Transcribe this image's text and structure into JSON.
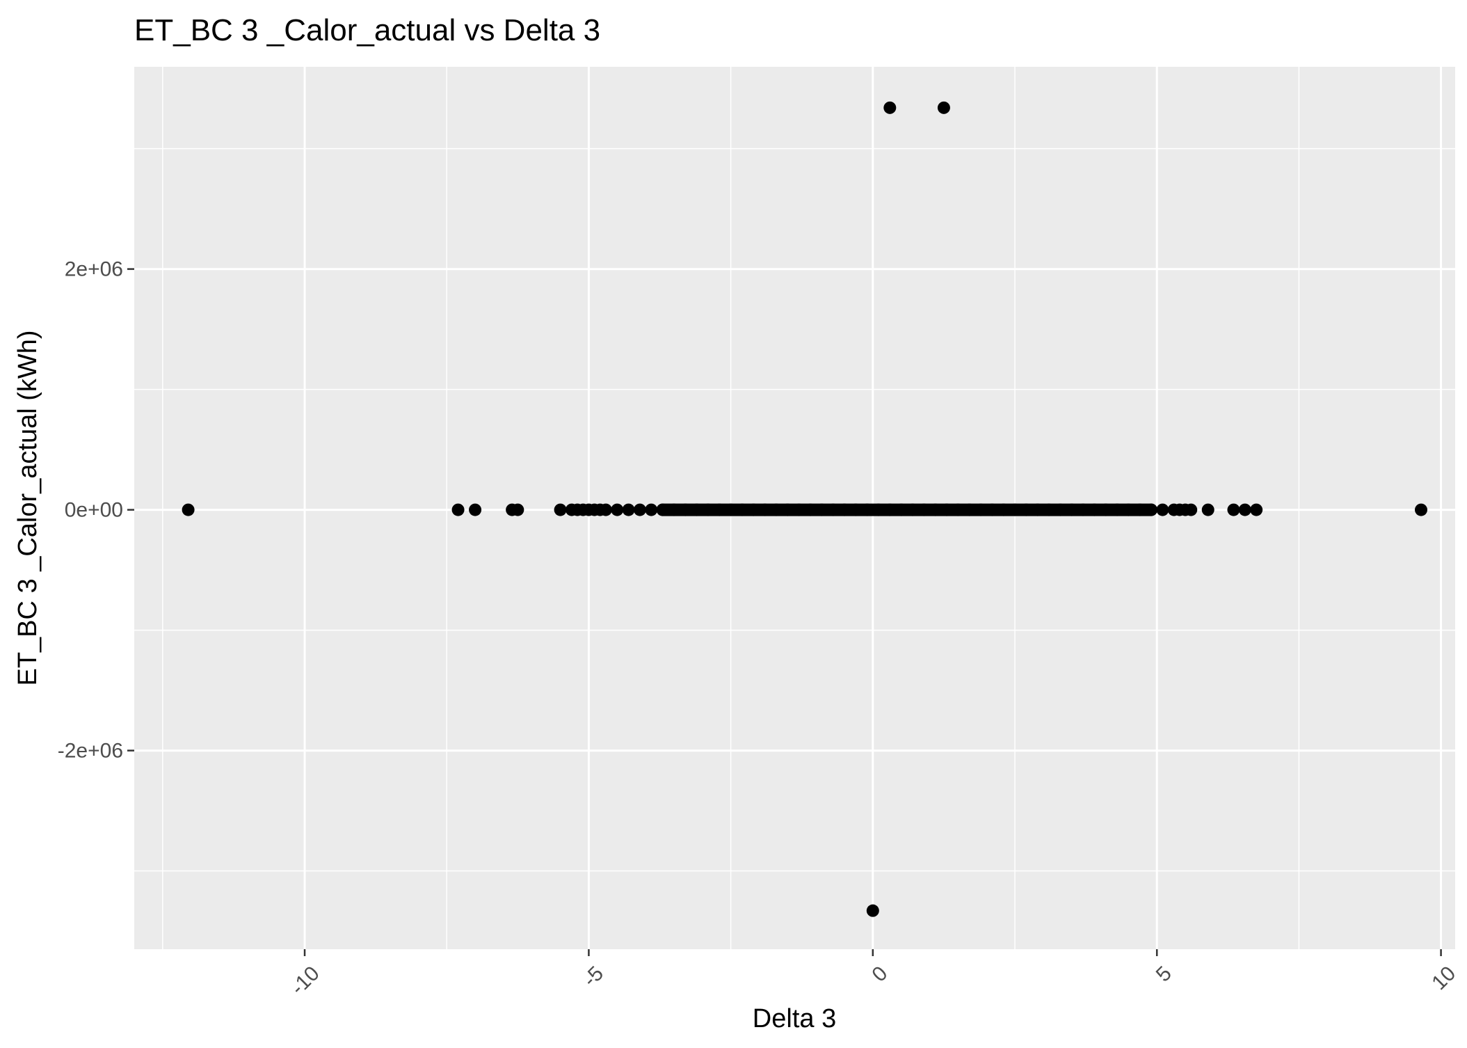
{
  "chart_data": {
    "type": "scatter",
    "title": "ET_BC 3 _Calor_actual vs Delta 3",
    "xlabel": "Delta 3",
    "ylabel": "ET_BC 3 _Calor_actual (kWh)",
    "xlim": [
      -13.0,
      10.25
    ],
    "ylim": [
      -3650000,
      3680000
    ],
    "x_ticks": [
      {
        "value": -10,
        "label": "-10"
      },
      {
        "value": -5,
        "label": "-5"
      },
      {
        "value": 0,
        "label": "0"
      },
      {
        "value": 5,
        "label": "5"
      },
      {
        "value": 10,
        "label": "10"
      }
    ],
    "y_ticks": [
      {
        "value": -2000000,
        "label": "-2e+06"
      },
      {
        "value": 0,
        "label": "0e+00"
      },
      {
        "value": 2000000,
        "label": "2e+06"
      }
    ],
    "grid": true,
    "legend": "none",
    "colors": {
      "panel": "#ebebeb",
      "grid": "#ffffff",
      "points": "#000000",
      "ticks": "#333333"
    },
    "series": [
      {
        "points": [
          [
            -12.05,
            0
          ],
          [
            -7.3,
            0
          ],
          [
            -7.0,
            0
          ],
          [
            -6.35,
            0
          ],
          [
            -6.25,
            0
          ],
          [
            -5.5,
            0
          ],
          [
            -5.3,
            0
          ],
          [
            -5.2,
            0
          ],
          [
            -5.1,
            0
          ],
          [
            -5.0,
            0
          ],
          [
            -4.9,
            0
          ],
          [
            -4.8,
            0
          ],
          [
            -4.7,
            0
          ],
          [
            -4.5,
            0
          ],
          [
            -4.3,
            0
          ],
          [
            -4.1,
            0
          ],
          [
            -3.9,
            0
          ],
          [
            -3.7,
            0
          ],
          [
            -3.5,
            0
          ],
          [
            -3.3,
            0
          ],
          [
            -3.1,
            0
          ],
          [
            -2.9,
            0
          ],
          [
            -2.7,
            0
          ],
          [
            -2.5,
            0
          ],
          [
            -2.3,
            0
          ],
          [
            -2.1,
            0
          ],
          [
            -1.9,
            0
          ],
          [
            -1.7,
            0
          ],
          [
            -1.5,
            0
          ],
          [
            -1.3,
            0
          ],
          [
            -1.1,
            0
          ],
          [
            -0.9,
            0
          ],
          [
            -0.7,
            0
          ],
          [
            -0.5,
            0
          ],
          [
            -0.3,
            0
          ],
          [
            -0.1,
            0
          ],
          [
            0.1,
            0
          ],
          [
            0.3,
            0
          ],
          [
            0.5,
            0
          ],
          [
            0.7,
            0
          ],
          [
            0.9,
            0
          ],
          [
            1.1,
            0
          ],
          [
            1.3,
            0
          ],
          [
            1.5,
            0
          ],
          [
            1.7,
            0
          ],
          [
            1.9,
            0
          ],
          [
            2.1,
            0
          ],
          [
            2.3,
            0
          ],
          [
            2.5,
            0
          ],
          [
            2.7,
            0
          ],
          [
            2.9,
            0
          ],
          [
            3.1,
            0
          ],
          [
            3.3,
            0
          ],
          [
            3.5,
            0
          ],
          [
            3.7,
            0
          ],
          [
            3.9,
            0
          ],
          [
            4.1,
            0
          ],
          [
            4.3,
            0
          ],
          [
            4.5,
            0
          ],
          [
            4.7,
            0
          ],
          [
            4.9,
            0
          ],
          [
            5.1,
            0
          ],
          [
            5.3,
            0
          ],
          [
            5.4,
            0
          ],
          [
            5.5,
            0
          ],
          [
            5.6,
            0
          ],
          [
            5.9,
            0
          ],
          [
            6.35,
            0
          ],
          [
            6.55,
            0
          ],
          [
            6.75,
            0
          ],
          [
            9.65,
            0
          ],
          [
            0.3,
            3340000
          ],
          [
            1.25,
            3340000
          ],
          [
            0.0,
            -3330000
          ]
        ]
      }
    ]
  }
}
